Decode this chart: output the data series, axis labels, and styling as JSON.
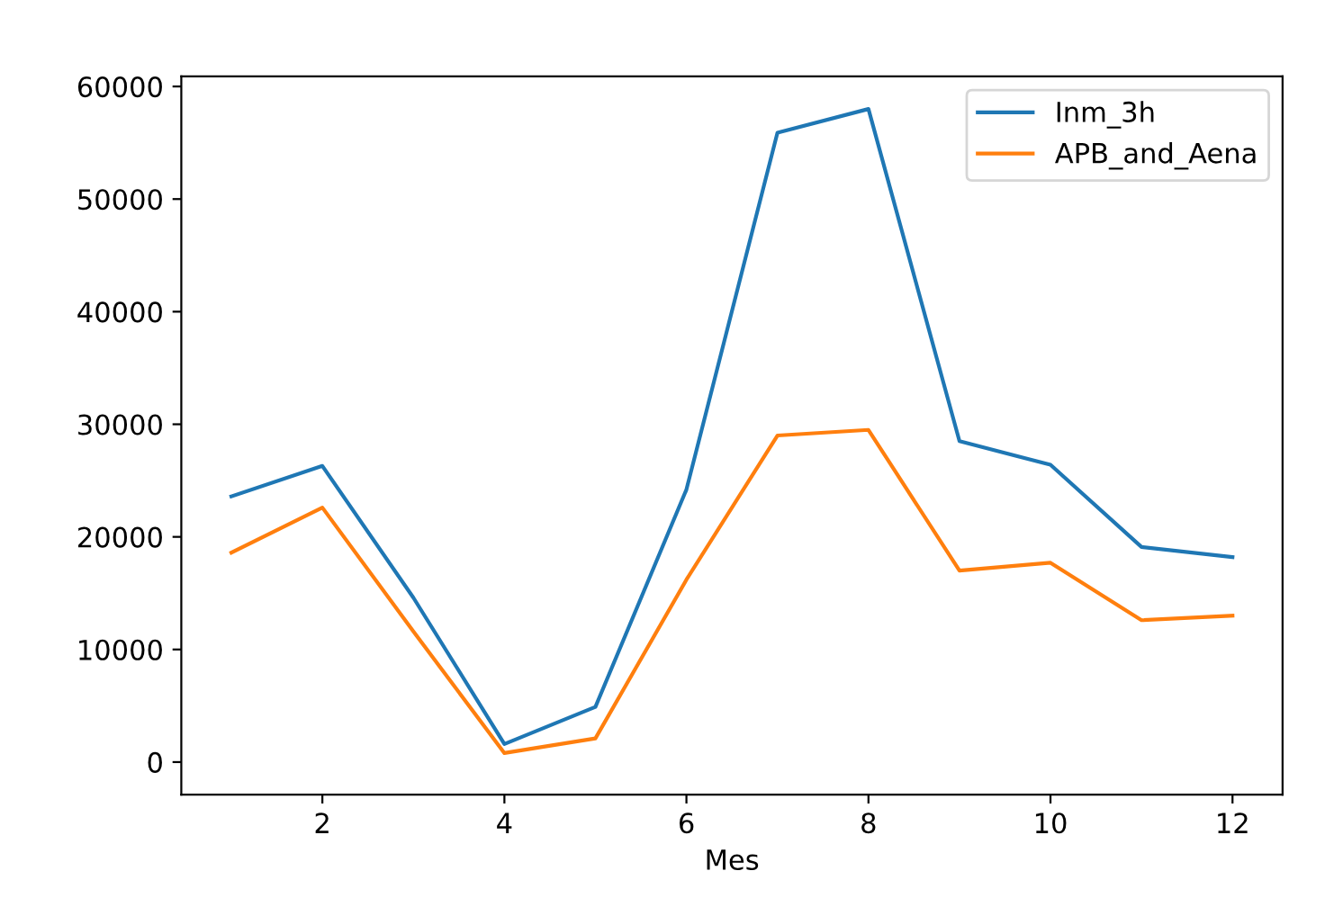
{
  "chart_data": {
    "type": "line",
    "xlabel": "Mes",
    "x": [
      1,
      2,
      3,
      4,
      5,
      6,
      7,
      8,
      9,
      10,
      11,
      12
    ],
    "series": [
      {
        "name": "Inm_3h",
        "color": "#1f77b4",
        "values": [
          23600,
          26300,
          14600,
          1600,
          4900,
          24200,
          55900,
          58000,
          28500,
          26400,
          19100,
          18200
        ]
      },
      {
        "name": "APB_and_Aena",
        "color": "#ff7f0e",
        "values": [
          18600,
          22600,
          11600,
          800,
          2100,
          16200,
          29000,
          29500,
          17000,
          17700,
          12600,
          13000
        ]
      }
    ],
    "xlim": [
      0.45,
      12.55
    ],
    "xticks": [
      2,
      4,
      6,
      8,
      10,
      12
    ],
    "ylim": [
      -2900,
      60900
    ],
    "yticks": [
      0,
      10000,
      20000,
      30000,
      40000,
      50000,
      60000
    ],
    "grid": false,
    "legend": "top right",
    "marker": "none",
    "line_style": "solid"
  }
}
